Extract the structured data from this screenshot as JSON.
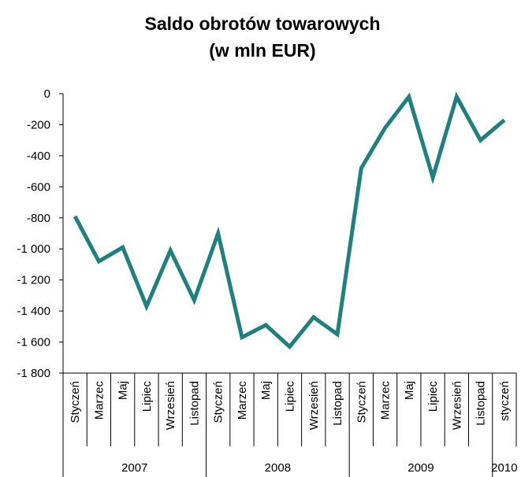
{
  "chart_data": {
    "type": "line",
    "title": "Saldo obrotów towarowych",
    "subtitle": "(w mln EUR)",
    "xlabel": "",
    "ylabel": "",
    "ylim": [
      -1800,
      0
    ],
    "yticks": [
      0,
      -200,
      -400,
      -600,
      -800,
      -1000,
      -1200,
      -1400,
      -1600,
      -1800
    ],
    "ytick_labels": [
      "0",
      "-200",
      "-400",
      "-600",
      "-800",
      "-1 000",
      "-1 200",
      "-1 400",
      "-1 600",
      "-1 800"
    ],
    "category_labels": [
      "Styczeń",
      "Marzec",
      "Maj",
      "Lipiec",
      "Wrzesień",
      "Listopad",
      "Styczeń",
      "Marzec",
      "Maj",
      "Lipiec",
      "Wrzesień",
      "Listopad",
      "Styczeń",
      "Marzec",
      "Maj",
      "Lipiec",
      "Wrzesień",
      "Listopad",
      "styczeń"
    ],
    "groups": [
      {
        "label": "2007",
        "count": 6
      },
      {
        "label": "2008",
        "count": 6
      },
      {
        "label": "2009",
        "count": 6
      },
      {
        "label": "2010",
        "count": 1
      }
    ],
    "series": [
      {
        "color": "#1f8080",
        "values": [
          -790,
          -1080,
          -990,
          -1370,
          -1010,
          -1330,
          -900,
          -1570,
          -1490,
          -1630,
          -1440,
          -1550,
          -480,
          -220,
          -20,
          -540,
          -20,
          -300,
          -170
        ]
      }
    ],
    "grid": false,
    "axis_color": "#000000"
  }
}
